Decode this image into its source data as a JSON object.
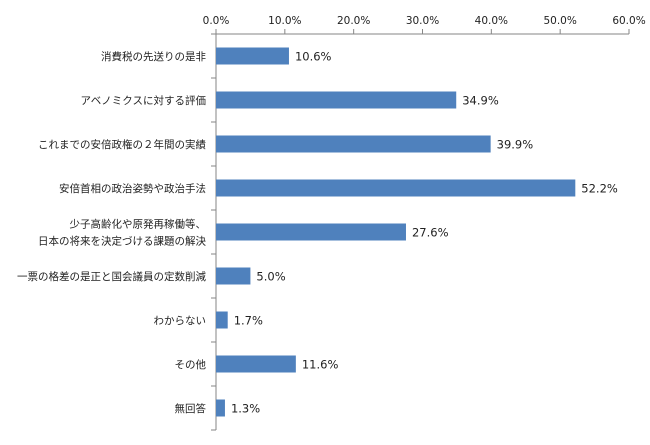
{
  "chart_data": {
    "type": "bar",
    "orientation": "horizontal",
    "categories": [
      [
        "消費税の先送りの是非"
      ],
      [
        "アベノミクスに対する評価"
      ],
      [
        "これまでの安倍政権の２年間の実績"
      ],
      [
        "安倍首相の政治姿勢や政治手法"
      ],
      [
        "少子高齢化や原発再稼働等、",
        "日本の将来を決定づける課題の解決"
      ],
      [
        "一票の格差の是正と国会議員の定数削減"
      ],
      [
        "わからない"
      ],
      [
        "その他"
      ],
      [
        "無回答"
      ]
    ],
    "values": [
      10.6,
      34.9,
      39.9,
      52.2,
      27.6,
      5.0,
      1.7,
      11.6,
      1.3
    ],
    "value_labels": [
      "10.6%",
      "34.9%",
      "39.9%",
      "52.2%",
      "27.6%",
      "5.0%",
      "1.7%",
      "11.6%",
      "1.3%"
    ],
    "xlim": [
      0,
      60
    ],
    "xticks": [
      0,
      10,
      20,
      30,
      40,
      50,
      60
    ],
    "xtick_labels": [
      "0.0%",
      "10.0%",
      "20.0%",
      "30.0%",
      "40.0%",
      "50.0%",
      "60.0%"
    ],
    "axis_position": "top",
    "grid": false,
    "legend": "none",
    "bar_color": "#4f81bd",
    "axis_color": "#868686"
  }
}
